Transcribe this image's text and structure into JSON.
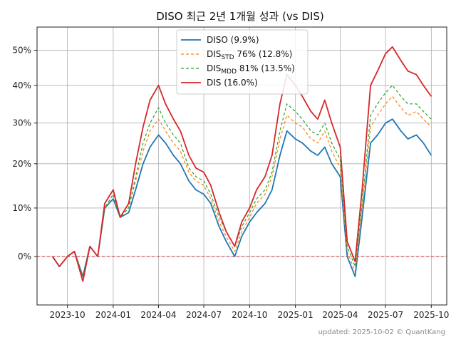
{
  "chart_data": {
    "type": "line",
    "title": "DISO 최근 2년 1개월 성과 (vs DIS)",
    "xlabel": "",
    "ylabel": "",
    "x_ticks": [
      "2023-10",
      "2024-01",
      "2024-04",
      "2024-07",
      "2024-10",
      "2025-01",
      "2025-04",
      "2025-07",
      "2025-10"
    ],
    "y_ticks": [
      "0%",
      "10%",
      "20%",
      "30%",
      "40%",
      "50%"
    ],
    "ylim": [
      -0.1,
      0.57
    ],
    "grid": true,
    "legend_position": "top-center",
    "x": [
      "2023-09-01",
      "2023-09-15",
      "2023-10-01",
      "2023-10-15",
      "2023-11-01",
      "2023-11-15",
      "2023-12-01",
      "2023-12-15",
      "2024-01-01",
      "2024-01-15",
      "2024-02-01",
      "2024-02-15",
      "2024-03-01",
      "2024-03-15",
      "2024-04-01",
      "2024-04-15",
      "2024-05-01",
      "2024-05-15",
      "2024-06-01",
      "2024-06-15",
      "2024-07-01",
      "2024-07-15",
      "2024-08-01",
      "2024-08-15",
      "2024-09-01",
      "2024-09-15",
      "2024-10-01",
      "2024-10-15",
      "2024-11-01",
      "2024-11-15",
      "2024-12-01",
      "2024-12-15",
      "2025-01-01",
      "2025-01-15",
      "2025-02-01",
      "2025-02-15",
      "2025-03-01",
      "2025-03-15",
      "2025-04-01",
      "2025-04-15",
      "2025-05-01",
      "2025-05-15",
      "2025-06-01",
      "2025-06-15",
      "2025-07-01",
      "2025-07-15",
      "2025-08-01",
      "2025-08-15",
      "2025-09-01",
      "2025-09-15",
      "2025-10-01"
    ],
    "series": [
      {
        "name": "DISO (9.9%)",
        "legend_prefix": "DISO",
        "legend_sub": "",
        "legend_suffix": " (9.9%)",
        "color": "#1f77b4",
        "dash": "",
        "values": [
          0.0,
          -0.02,
          0.0,
          0.01,
          -0.04,
          0.02,
          0.0,
          0.1,
          0.12,
          0.08,
          0.09,
          0.14,
          0.2,
          0.24,
          0.27,
          0.25,
          0.22,
          0.2,
          0.16,
          0.14,
          0.13,
          0.11,
          0.06,
          0.03,
          0.0,
          0.04,
          0.07,
          0.09,
          0.11,
          0.14,
          0.22,
          0.28,
          0.26,
          0.25,
          0.23,
          0.22,
          0.24,
          0.2,
          0.17,
          0.0,
          -0.04,
          0.08,
          0.25,
          0.27,
          0.3,
          0.31,
          0.28,
          0.26,
          0.27,
          0.25,
          0.22
        ]
      },
      {
        "name": "DIS₂ₜ₂ 76% (12.8%)",
        "legend_prefix": "DIS",
        "legend_sub": "STD",
        "legend_suffix": " 76% (12.8%)",
        "color": "#ff7f0e",
        "dash": "4,3",
        "values": [
          0.0,
          -0.02,
          0.0,
          0.01,
          -0.04,
          0.02,
          0.0,
          0.1,
          0.13,
          0.08,
          0.1,
          0.16,
          0.23,
          0.28,
          0.31,
          0.28,
          0.25,
          0.23,
          0.18,
          0.16,
          0.15,
          0.12,
          0.07,
          0.04,
          0.01,
          0.05,
          0.08,
          0.11,
          0.13,
          0.17,
          0.26,
          0.32,
          0.3,
          0.29,
          0.26,
          0.25,
          0.28,
          0.23,
          0.19,
          0.01,
          -0.03,
          0.1,
          0.29,
          0.32,
          0.35,
          0.37,
          0.34,
          0.32,
          0.33,
          0.31,
          0.29
        ]
      },
      {
        "name": "DIS MDD 81% (13.5%)",
        "legend_prefix": "DIS",
        "legend_sub": "MDD",
        "legend_suffix": " 81% (13.5%)",
        "color": "#2ca02c",
        "dash": "4,3",
        "values": [
          0.0,
          -0.02,
          0.0,
          0.01,
          -0.04,
          0.02,
          0.0,
          0.1,
          0.13,
          0.08,
          0.1,
          0.17,
          0.25,
          0.3,
          0.34,
          0.3,
          0.27,
          0.25,
          0.19,
          0.17,
          0.16,
          0.13,
          0.08,
          0.05,
          0.02,
          0.06,
          0.09,
          0.12,
          0.14,
          0.18,
          0.28,
          0.35,
          0.33,
          0.31,
          0.28,
          0.27,
          0.3,
          0.25,
          0.21,
          0.02,
          -0.02,
          0.11,
          0.32,
          0.35,
          0.38,
          0.4,
          0.37,
          0.35,
          0.35,
          0.33,
          0.31
        ]
      },
      {
        "name": "DIS (16.0%)",
        "legend_prefix": "DIS",
        "legend_sub": "",
        "legend_suffix": " (16.0%)",
        "color": "#d62728",
        "dash": "",
        "values": [
          0.0,
          -0.02,
          0.0,
          0.01,
          -0.05,
          0.02,
          0.0,
          0.11,
          0.14,
          0.08,
          0.11,
          0.2,
          0.29,
          0.36,
          0.4,
          0.35,
          0.31,
          0.28,
          0.22,
          0.19,
          0.18,
          0.15,
          0.09,
          0.05,
          0.02,
          0.07,
          0.1,
          0.14,
          0.17,
          0.22,
          0.35,
          0.43,
          0.4,
          0.37,
          0.33,
          0.31,
          0.36,
          0.3,
          0.24,
          0.03,
          -0.01,
          0.14,
          0.4,
          0.44,
          0.49,
          0.51,
          0.47,
          0.44,
          0.43,
          0.4,
          0.37
        ]
      }
    ],
    "reference_line": {
      "value": 0,
      "color": "#d62728"
    },
    "footer": "updated: 2025-10-02 © QuantKang"
  }
}
